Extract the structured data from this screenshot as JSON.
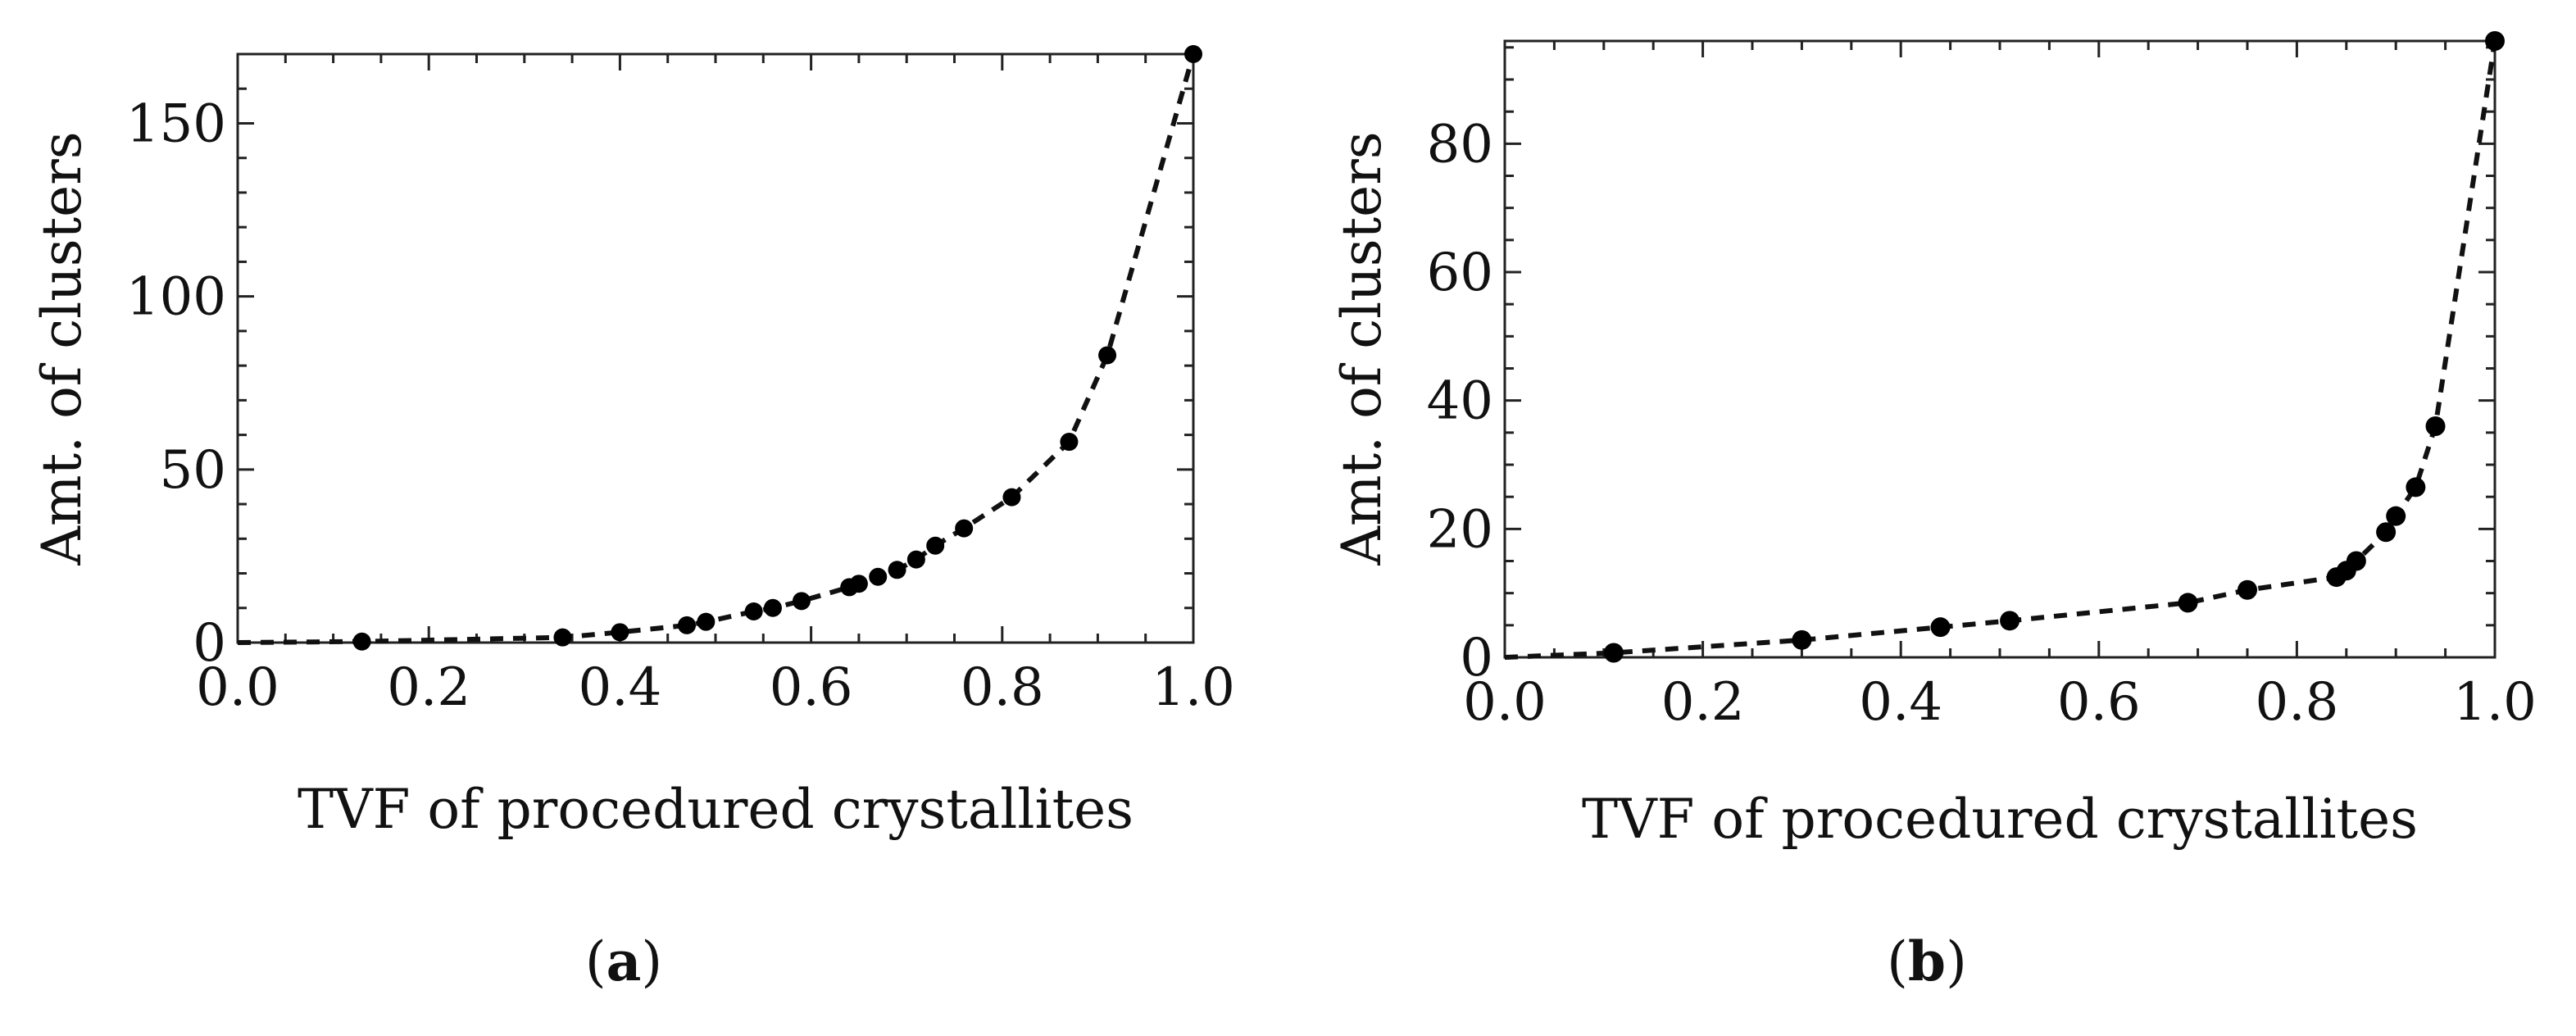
{
  "figure": {
    "captions": [
      {
        "open": "(",
        "letter": "a",
        "close": ")"
      },
      {
        "open": "(",
        "letter": "b",
        "close": ")"
      }
    ]
  },
  "chart_data": [
    {
      "type": "scatter",
      "panel": "a",
      "xlabel": "TVF of procedured crystallites",
      "ylabel": "Amt. of clusters",
      "xlim": [
        0,
        1.0
      ],
      "ylim": [
        0,
        170
      ],
      "xticks": [
        "0.0",
        "0.2",
        "0.4",
        "0.6",
        "0.8",
        "1.0"
      ],
      "yticks": [
        "0",
        "50",
        "100",
        "150"
      ],
      "line_style": "dashed",
      "series": [
        {
          "name": "clusters",
          "x": [
            0.0,
            0.13,
            0.34,
            0.4,
            0.47,
            0.49,
            0.54,
            0.56,
            0.59,
            0.64,
            0.65,
            0.67,
            0.69,
            0.71,
            0.73,
            0.76,
            0.81,
            0.87,
            0.91,
            1.0
          ],
          "y": [
            0,
            0.3,
            1.5,
            3,
            5,
            6,
            9,
            10,
            12,
            16,
            17,
            19,
            21,
            24,
            28,
            33,
            42,
            58,
            83,
            170
          ]
        }
      ]
    },
    {
      "type": "scatter",
      "panel": "b",
      "xlabel": "TVF of procedured crystallites",
      "ylabel": "Amt. of clusters",
      "xlim": [
        0,
        1.0
      ],
      "ylim": [
        0,
        96
      ],
      "xticks": [
        "0.0",
        "0.2",
        "0.4",
        "0.6",
        "0.8",
        "1.0"
      ],
      "yticks": [
        "0",
        "20",
        "40",
        "60",
        "80"
      ],
      "line_style": "dashed",
      "series": [
        {
          "name": "clusters",
          "x": [
            0.0,
            0.11,
            0.3,
            0.44,
            0.51,
            0.69,
            0.75,
            0.84,
            0.85,
            0.86,
            0.89,
            0.9,
            0.92,
            0.94,
            1.0
          ],
          "y": [
            0,
            0.7,
            2.7,
            4.7,
            5.7,
            8.5,
            10.5,
            12.5,
            13.5,
            15,
            19.5,
            22,
            26.5,
            36,
            96
          ]
        }
      ]
    }
  ]
}
